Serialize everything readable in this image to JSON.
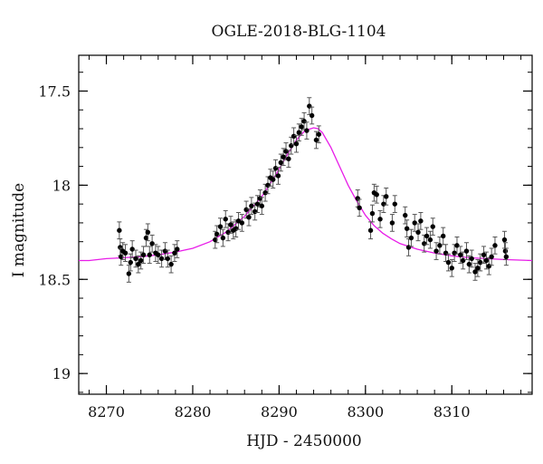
{
  "chart_data": {
    "type": "scatter",
    "title": "OGLE-2018-BLG-1104",
    "xlabel": "HJD - 2450000",
    "ylabel": "I magnitude",
    "xlim": [
      8266.8,
      8319.3
    ],
    "ylim": [
      19.11,
      17.31
    ],
    "y_inverted": true,
    "x_ticks": [
      8270,
      8280,
      8290,
      8300,
      8310
    ],
    "y_ticks": [
      17.5,
      18,
      18.5,
      19
    ],
    "x_tick_labels": [
      "8270",
      "8280",
      "8290",
      "8300",
      "8310"
    ],
    "y_tick_labels": [
      "17.5",
      "18",
      "18.5",
      "19"
    ],
    "grid": false,
    "model_color": "#e81ce8",
    "point_color": "#000000",
    "errorbar_color": "#555555",
    "model": {
      "name": "",
      "x": [
        8266.8,
        8268,
        8270,
        8272,
        8274,
        8276,
        8278,
        8280,
        8282,
        8284,
        8286,
        8288,
        8289,
        8290,
        8291,
        8292,
        8293,
        8294,
        8294.5,
        8295,
        8296,
        8297,
        8298,
        8299,
        8300,
        8301,
        8302,
        8303,
        8304,
        8306,
        8308,
        8310,
        8312,
        8314,
        8316,
        8319.3
      ],
      "y": [
        18.4,
        18.4,
        18.39,
        18.385,
        18.38,
        18.37,
        18.355,
        18.335,
        18.3,
        18.245,
        18.165,
        18.06,
        17.99,
        17.915,
        17.835,
        17.76,
        17.71,
        17.695,
        17.7,
        17.72,
        17.8,
        17.9,
        18.0,
        18.085,
        18.16,
        18.215,
        18.255,
        18.285,
        18.31,
        18.34,
        18.36,
        18.375,
        18.385,
        18.39,
        18.395,
        18.4
      ]
    },
    "series": [
      {
        "name": "",
        "x": [
          8271.5,
          8271.6,
          8271.7,
          8271.9,
          8272.2,
          8272.6,
          8272.8,
          8273.0,
          8273.4,
          8273.7,
          8274.0,
          8274.3,
          8274.6,
          8274.8,
          8275.0,
          8275.3,
          8275.7,
          8276.0,
          8276.4,
          8276.8,
          8277.1,
          8277.5,
          8277.9,
          8278.2,
          8282.6,
          8282.8,
          8283.2,
          8283.5,
          8283.8,
          8284.1,
          8284.4,
          8284.7,
          8285.0,
          8285.3,
          8285.7,
          8286.2,
          8286.5,
          8286.8,
          8287.2,
          8287.5,
          8287.8,
          8288.0,
          8288.4,
          8288.7,
          8289.0,
          8289.3,
          8289.6,
          8289.9,
          8290.2,
          8290.5,
          8290.8,
          8291.1,
          8291.4,
          8291.7,
          8292.0,
          8292.3,
          8292.6,
          8292.9,
          8293.2,
          8293.5,
          8293.8,
          8294.3,
          8294.6,
          8299.1,
          8299.3,
          8300.6,
          8300.8,
          8301.0,
          8301.3,
          8301.7,
          8302.1,
          8302.4,
          8303.1,
          8303.4,
          8304.6,
          8304.8,
          8305.0,
          8305.3,
          8305.7,
          8306.1,
          8306.4,
          8306.8,
          8307.1,
          8307.5,
          8307.8,
          8308.2,
          8308.6,
          8309.0,
          8309.3,
          8309.6,
          8310.0,
          8310.3,
          8310.6,
          8311.0,
          8311.3,
          8311.7,
          8312.0,
          8312.3,
          8312.7,
          8313.0,
          8313.3,
          8313.7,
          8314.0,
          8314.3,
          8314.6,
          8315.0,
          8316.1,
          8316.2,
          8316.3
        ],
        "y": [
          18.24,
          18.33,
          18.38,
          18.35,
          18.36,
          18.47,
          18.41,
          18.34,
          18.39,
          18.42,
          18.4,
          18.37,
          18.28,
          18.25,
          18.37,
          18.31,
          18.36,
          18.37,
          18.39,
          18.35,
          18.39,
          18.42,
          18.36,
          18.34,
          18.29,
          18.26,
          18.22,
          18.28,
          18.18,
          18.25,
          18.21,
          18.24,
          18.23,
          18.19,
          18.2,
          18.13,
          18.17,
          18.11,
          18.14,
          18.1,
          18.07,
          18.11,
          18.04,
          18.0,
          17.96,
          17.97,
          17.91,
          17.95,
          17.88,
          17.85,
          17.82,
          17.86,
          17.79,
          17.74,
          17.78,
          17.72,
          17.69,
          17.66,
          17.71,
          17.58,
          17.63,
          17.76,
          17.73,
          18.07,
          18.12,
          18.24,
          18.15,
          18.04,
          18.05,
          18.18,
          18.1,
          18.06,
          18.2,
          18.1,
          18.16,
          18.23,
          18.33,
          18.28,
          18.2,
          18.25,
          18.19,
          18.31,
          18.27,
          18.29,
          18.22,
          18.35,
          18.32,
          18.27,
          18.36,
          18.41,
          18.44,
          18.36,
          18.32,
          18.37,
          18.4,
          18.35,
          18.42,
          18.39,
          18.46,
          18.44,
          18.41,
          18.37,
          18.4,
          18.43,
          18.38,
          18.32,
          18.29,
          18.35,
          18.38
        ]
      }
    ]
  }
}
